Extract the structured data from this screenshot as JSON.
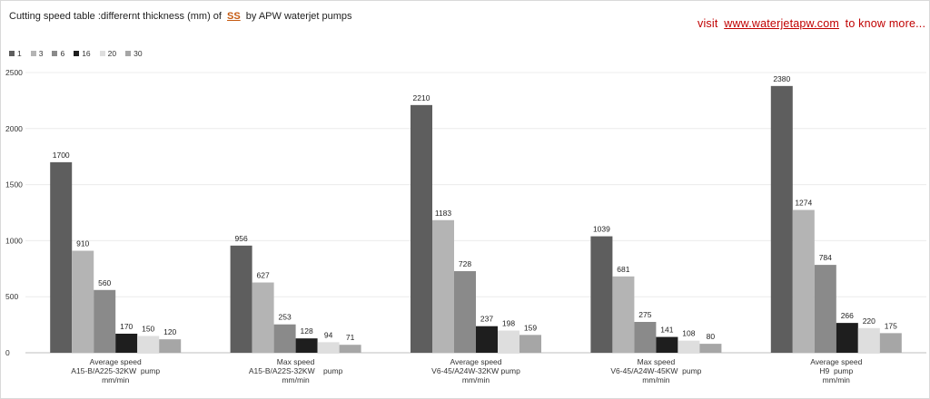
{
  "header": {
    "title_before": "Cutting speed table :differernt thickness (mm) of",
    "title_material": "SS",
    "title_after": "by APW waterjet pumps",
    "visit_prefix": "visit",
    "visit_url": "www.waterjetapw.com",
    "visit_suffix": "to know more..."
  },
  "chart_data": {
    "type": "bar",
    "title": "Cutting speed table :differernt thickness (mm) of SS by APW waterjet pumps",
    "xlabel": "",
    "ylabel": "",
    "ylim": [
      0,
      2500
    ],
    "yticks": [
      0,
      500,
      1000,
      1500,
      2000,
      2500
    ],
    "grid": true,
    "legend_position": "top-left",
    "categories": [
      [
        "Average speed",
        "A15-B/A225-32KW  pump",
        "mm/min"
      ],
      [
        "Max speed",
        "A15-B/A22S-32KW    pump",
        "mm/min"
      ],
      [
        "Average speed",
        "V6-45/A24W-32KW pump",
        "mm/min"
      ],
      [
        "Max speed",
        "V6-45/A24W-45KW  pump",
        "mm/min"
      ],
      [
        "Average speed",
        "H9  pump",
        "mm/min"
      ]
    ],
    "series": [
      {
        "name": "1",
        "color": "#5e5e5e",
        "values": [
          1700,
          956,
          2210,
          1039,
          2380
        ]
      },
      {
        "name": "3",
        "color": "#b4b4b4",
        "values": [
          910,
          627,
          1183,
          681,
          1274
        ]
      },
      {
        "name": "6",
        "color": "#8a8a8a",
        "values": [
          560,
          253,
          728,
          275,
          784
        ]
      },
      {
        "name": "16",
        "color": "#1e1e1e",
        "values": [
          170,
          128,
          237,
          141,
          266
        ]
      },
      {
        "name": "20",
        "color": "#dedede",
        "values": [
          150,
          94,
          198,
          108,
          220
        ]
      },
      {
        "name": "30",
        "color": "#a6a6a6",
        "values": [
          120,
          71,
          159,
          80,
          175
        ]
      }
    ]
  }
}
